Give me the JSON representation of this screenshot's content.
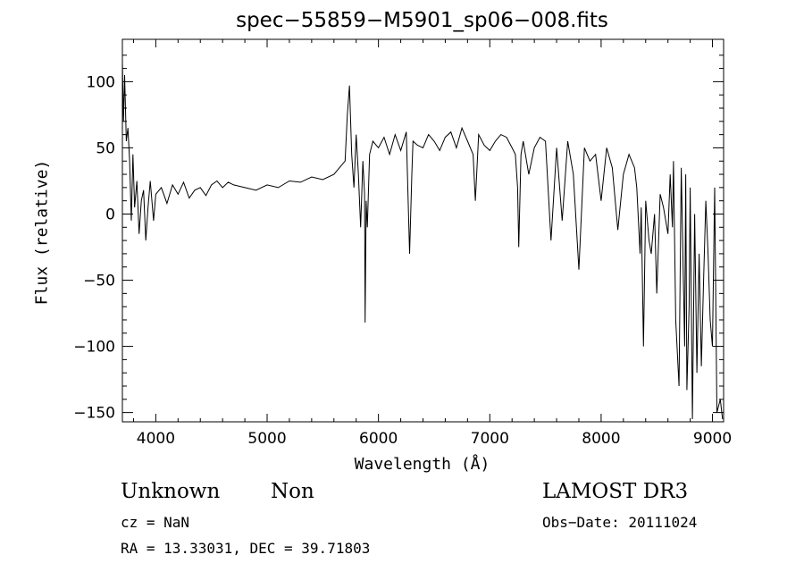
{
  "chart_data": {
    "type": "line",
    "title": "spec−55859−M5901_sp06−008.fits",
    "xlabel": "Wavelength (Å)",
    "ylabel": "Flux (relative)",
    "xlim": [
      3700,
      9100
    ],
    "ylim": [
      -157,
      132
    ],
    "x_ticks": [
      {
        "value": 4000,
        "label": "4000"
      },
      {
        "value": 5000,
        "label": "5000"
      },
      {
        "value": 6000,
        "label": "6000"
      },
      {
        "value": 7000,
        "label": "7000"
      },
      {
        "value": 8000,
        "label": "8000"
      },
      {
        "value": 9000,
        "label": "9000"
      }
    ],
    "y_ticks": [
      {
        "value": 100,
        "label": "100"
      },
      {
        "value": 50,
        "label": "50"
      },
      {
        "value": 0,
        "label": "0"
      },
      {
        "value": -50,
        "label": "−50"
      },
      {
        "value": -100,
        "label": "−100"
      },
      {
        "value": -150,
        "label": "−150"
      }
    ],
    "series": [
      {
        "name": "flux",
        "x": [
          3700,
          3710,
          3720,
          3735,
          3750,
          3765,
          3780,
          3795,
          3810,
          3830,
          3850,
          3870,
          3890,
          3910,
          3930,
          3950,
          3980,
          4000,
          4050,
          4100,
          4150,
          4200,
          4250,
          4300,
          4350,
          4400,
          4450,
          4500,
          4550,
          4600,
          4650,
          4700,
          4800,
          4900,
          5000,
          5100,
          5200,
          5300,
          5400,
          5500,
          5600,
          5650,
          5700,
          5720,
          5740,
          5760,
          5780,
          5800,
          5820,
          5840,
          5860,
          5875,
          5880,
          5890,
          5900,
          5920,
          5950,
          6000,
          6050,
          6100,
          6150,
          6200,
          6250,
          6280,
          6300,
          6310,
          6350,
          6400,
          6450,
          6500,
          6550,
          6600,
          6650,
          6700,
          6750,
          6800,
          6850,
          6870,
          6900,
          6950,
          7000,
          7050,
          7100,
          7150,
          7200,
          7230,
          7250,
          7260,
          7280,
          7300,
          7350,
          7400,
          7450,
          7500,
          7550,
          7600,
          7650,
          7700,
          7750,
          7800,
          7850,
          7900,
          7950,
          8000,
          8050,
          8100,
          8150,
          8200,
          8250,
          8300,
          8320,
          8350,
          8360,
          8380,
          8400,
          8430,
          8450,
          8480,
          8500,
          8530,
          8560,
          8600,
          8620,
          8640,
          8650,
          8670,
          8700,
          8720,
          8750,
          8760,
          8770,
          8790,
          8800,
          8820,
          8840,
          8860,
          8880,
          8900,
          8920,
          8940,
          8960,
          8980,
          9000,
          9020,
          9040,
          9070,
          9090
        ],
        "y": [
          115,
          70,
          105,
          55,
          65,
          40,
          -5,
          45,
          5,
          25,
          -15,
          10,
          18,
          -20,
          5,
          25,
          -5,
          15,
          20,
          8,
          22,
          15,
          24,
          12,
          18,
          20,
          14,
          22,
          25,
          20,
          24,
          22,
          20,
          18,
          22,
          20,
          25,
          24,
          28,
          26,
          30,
          35,
          40,
          75,
          97,
          45,
          20,
          60,
          30,
          -10,
          40,
          15,
          -82,
          10,
          -10,
          45,
          55,
          50,
          58,
          45,
          60,
          48,
          62,
          -30,
          30,
          55,
          52,
          50,
          60,
          55,
          48,
          58,
          62,
          50,
          65,
          55,
          45,
          10,
          60,
          52,
          48,
          55,
          60,
          58,
          50,
          45,
          20,
          -25,
          45,
          55,
          30,
          50,
          58,
          55,
          -20,
          50,
          -5,
          55,
          30,
          -42,
          50,
          40,
          45,
          10,
          50,
          35,
          -12,
          30,
          45,
          35,
          20,
          -30,
          5,
          -100,
          10,
          -20,
          -30,
          0,
          -60,
          15,
          5,
          -15,
          30,
          -10,
          40,
          -80,
          -130,
          35,
          -100,
          30,
          -133,
          -70,
          20,
          -155,
          0,
          -120,
          -30,
          -115,
          -50,
          10,
          -30,
          -80,
          -100,
          20,
          -150,
          -140,
          -155
        ]
      }
    ]
  },
  "annotations": {
    "class": "Unknown",
    "subclass": "Non",
    "survey": "LAMOST DR3",
    "cz": "cz = NaN",
    "obs_date": "Obs−Date: 20111024",
    "coords": "RA =  13.33031, DEC =  39.71803"
  }
}
